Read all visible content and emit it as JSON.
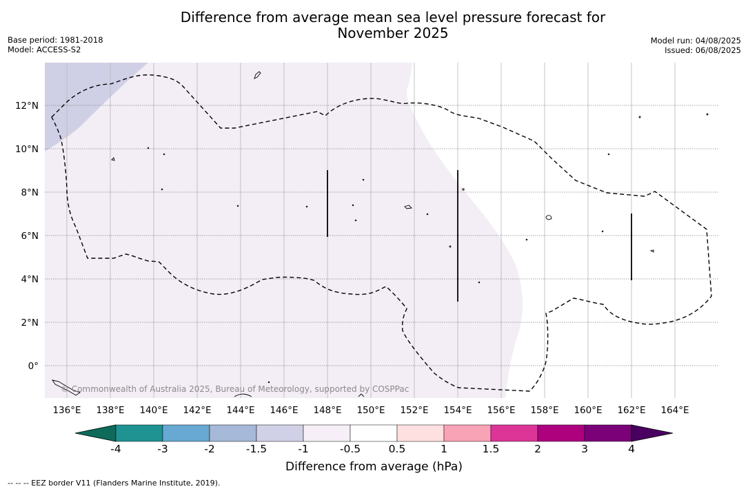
{
  "title_line1": "Difference from average mean sea level pressure forecast for",
  "title_line2": "November 2025",
  "meta_left": [
    "Base period: 1981-2018",
    "Model: ACCESS-S2"
  ],
  "meta_right": [
    "Model run: 04/08/2025",
    "Issued: 06/08/2025"
  ],
  "map": {
    "lat_labels": [
      "12°N",
      "10°N",
      "8°N",
      "6°N",
      "4°N",
      "2°N",
      "0°"
    ],
    "lon_labels": [
      "136°E",
      "138°E",
      "140°E",
      "142°E",
      "144°E",
      "146°E",
      "148°E",
      "150°E",
      "152°E",
      "154°E",
      "156°E",
      "158°E",
      "160°E",
      "162°E",
      "164°E"
    ],
    "copyright": "© Commonwealth of Australia 2025, Bureau of Meteorology, supported by COSPPac",
    "region_colors": {
      "minus_1_5_to_minus_1": "#cfd0e5",
      "minus_1_to_minus_0_5": "#f3edf6",
      "minus_0_5_to_0_5": "#ffffff"
    }
  },
  "colorbar": {
    "ticks": [
      "-4",
      "-3",
      "-2",
      "-1.5",
      "-1",
      "-0.5",
      "0.5",
      "1",
      "1.5",
      "2",
      "3",
      "4"
    ],
    "colors": [
      "#1f9292",
      "#67a9d2",
      "#a6b9d8",
      "#d0d1e6",
      "#f6eff7",
      "#ffffff",
      "#fee0e0",
      "#f9a3b6",
      "#dd3497",
      "#ae017e",
      "#7a0177"
    ],
    "under_color": "#0e6b5a",
    "over_color": "#4a0060",
    "label": "Difference from average (hPa)"
  },
  "footnote": "-- -- -- EEZ border V11 (Flanders Marine Institute, 2019)."
}
